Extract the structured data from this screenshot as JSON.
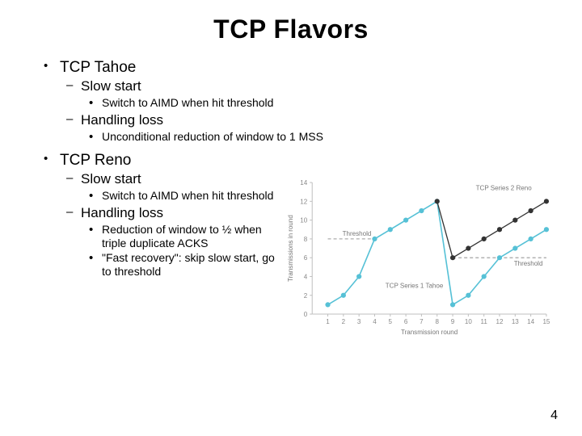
{
  "title": "TCP Flavors",
  "page_number": "4",
  "sections": [
    {
      "label": "TCP Tahoe",
      "subs": [
        {
          "label": "Slow start",
          "points": [
            "Switch to AIMD when hit threshold"
          ]
        },
        {
          "label": "Handling loss",
          "points": [
            "Unconditional reduction of window to 1 MSS"
          ]
        }
      ]
    },
    {
      "label": "TCP Reno",
      "subs": [
        {
          "label": "Slow start",
          "points": [
            "Switch to AIMD when hit threshold"
          ]
        },
        {
          "label": "Handling loss",
          "points": [
            "Reduction of window to ½ when triple duplicate ACKS",
            "\"Fast recovery\": skip slow start, go to threshold"
          ]
        }
      ]
    }
  ],
  "chart": {
    "type": "line",
    "xlabel": "Transmission round",
    "ylabel": "Transmissions in round",
    "xlim": [
      0,
      15
    ],
    "ylim": [
      0,
      14
    ],
    "xticks": [
      1,
      2,
      3,
      4,
      5,
      6,
      7,
      8,
      9,
      10,
      11,
      12,
      13,
      14,
      15
    ],
    "yticks": [
      0,
      2,
      4,
      6,
      8,
      10,
      12,
      14
    ],
    "background_color": "#ffffff",
    "axis_color": "#bfbfbf",
    "tick_color": "#bfbfbf",
    "tick_label_color": "#888888",
    "tahoe": {
      "label": "TCP Series 1 Tahoe",
      "color": "#56c1d6",
      "marker": "circle",
      "line_width": 1.6,
      "data": [
        [
          1,
          1
        ],
        [
          2,
          2
        ],
        [
          3,
          4
        ],
        [
          4,
          8
        ],
        [
          5,
          9
        ],
        [
          6,
          10
        ],
        [
          7,
          11
        ],
        [
          8,
          12
        ],
        [
          9,
          1
        ],
        [
          10,
          2
        ],
        [
          11,
          4
        ],
        [
          12,
          6
        ],
        [
          13,
          7
        ],
        [
          14,
          8
        ],
        [
          15,
          9
        ]
      ]
    },
    "reno": {
      "label": "TCP Series 2 Reno",
      "color": "#333333",
      "marker": "circle",
      "line_width": 1.3,
      "data": [
        [
          8,
          12
        ],
        [
          9,
          6
        ],
        [
          10,
          7
        ],
        [
          11,
          8
        ],
        [
          12,
          9
        ],
        [
          13,
          10
        ],
        [
          14,
          11
        ],
        [
          15,
          12
        ]
      ]
    },
    "threshold_upper": {
      "y": 8,
      "label": "Threshold",
      "color": "#999999",
      "dash": "4,3",
      "x_from": 1,
      "x_to": 4
    },
    "threshold_lower": {
      "y": 6,
      "label": "Threshold",
      "color": "#999999",
      "dash": "4,3",
      "x_from": 9,
      "x_to": 15
    }
  }
}
